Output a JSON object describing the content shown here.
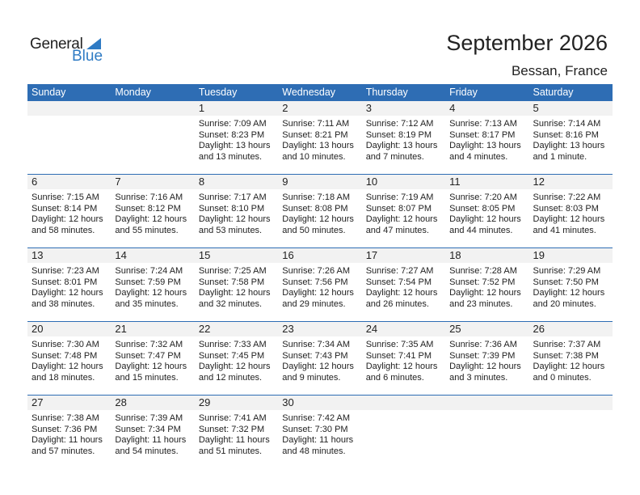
{
  "logo": {
    "general": "General",
    "blue": "Blue"
  },
  "header": {
    "title": "September 2026",
    "location": "Bessan, France"
  },
  "colors": {
    "accent": "#2e6db4",
    "day_bar": "#f2f2f2"
  },
  "weekdays": [
    "Sunday",
    "Monday",
    "Tuesday",
    "Wednesday",
    "Thursday",
    "Friday",
    "Saturday"
  ],
  "weeks": [
    [
      null,
      null,
      {
        "day": "1",
        "sunrise": "Sunrise: 7:09 AM",
        "sunset": "Sunset: 8:23 PM",
        "daylight": "Daylight: 13 hours",
        "minutes": "and 13 minutes."
      },
      {
        "day": "2",
        "sunrise": "Sunrise: 7:11 AM",
        "sunset": "Sunset: 8:21 PM",
        "daylight": "Daylight: 13 hours",
        "minutes": "and 10 minutes."
      },
      {
        "day": "3",
        "sunrise": "Sunrise: 7:12 AM",
        "sunset": "Sunset: 8:19 PM",
        "daylight": "Daylight: 13 hours",
        "minutes": "and 7 minutes."
      },
      {
        "day": "4",
        "sunrise": "Sunrise: 7:13 AM",
        "sunset": "Sunset: 8:17 PM",
        "daylight": "Daylight: 13 hours",
        "minutes": "and 4 minutes."
      },
      {
        "day": "5",
        "sunrise": "Sunrise: 7:14 AM",
        "sunset": "Sunset: 8:16 PM",
        "daylight": "Daylight: 13 hours",
        "minutes": "and 1 minute."
      }
    ],
    [
      {
        "day": "6",
        "sunrise": "Sunrise: 7:15 AM",
        "sunset": "Sunset: 8:14 PM",
        "daylight": "Daylight: 12 hours",
        "minutes": "and 58 minutes."
      },
      {
        "day": "7",
        "sunrise": "Sunrise: 7:16 AM",
        "sunset": "Sunset: 8:12 PM",
        "daylight": "Daylight: 12 hours",
        "minutes": "and 55 minutes."
      },
      {
        "day": "8",
        "sunrise": "Sunrise: 7:17 AM",
        "sunset": "Sunset: 8:10 PM",
        "daylight": "Daylight: 12 hours",
        "minutes": "and 53 minutes."
      },
      {
        "day": "9",
        "sunrise": "Sunrise: 7:18 AM",
        "sunset": "Sunset: 8:08 PM",
        "daylight": "Daylight: 12 hours",
        "minutes": "and 50 minutes."
      },
      {
        "day": "10",
        "sunrise": "Sunrise: 7:19 AM",
        "sunset": "Sunset: 8:07 PM",
        "daylight": "Daylight: 12 hours",
        "minutes": "and 47 minutes."
      },
      {
        "day": "11",
        "sunrise": "Sunrise: 7:20 AM",
        "sunset": "Sunset: 8:05 PM",
        "daylight": "Daylight: 12 hours",
        "minutes": "and 44 minutes."
      },
      {
        "day": "12",
        "sunrise": "Sunrise: 7:22 AM",
        "sunset": "Sunset: 8:03 PM",
        "daylight": "Daylight: 12 hours",
        "minutes": "and 41 minutes."
      }
    ],
    [
      {
        "day": "13",
        "sunrise": "Sunrise: 7:23 AM",
        "sunset": "Sunset: 8:01 PM",
        "daylight": "Daylight: 12 hours",
        "minutes": "and 38 minutes."
      },
      {
        "day": "14",
        "sunrise": "Sunrise: 7:24 AM",
        "sunset": "Sunset: 7:59 PM",
        "daylight": "Daylight: 12 hours",
        "minutes": "and 35 minutes."
      },
      {
        "day": "15",
        "sunrise": "Sunrise: 7:25 AM",
        "sunset": "Sunset: 7:58 PM",
        "daylight": "Daylight: 12 hours",
        "minutes": "and 32 minutes."
      },
      {
        "day": "16",
        "sunrise": "Sunrise: 7:26 AM",
        "sunset": "Sunset: 7:56 PM",
        "daylight": "Daylight: 12 hours",
        "minutes": "and 29 minutes."
      },
      {
        "day": "17",
        "sunrise": "Sunrise: 7:27 AM",
        "sunset": "Sunset: 7:54 PM",
        "daylight": "Daylight: 12 hours",
        "minutes": "and 26 minutes."
      },
      {
        "day": "18",
        "sunrise": "Sunrise: 7:28 AM",
        "sunset": "Sunset: 7:52 PM",
        "daylight": "Daylight: 12 hours",
        "minutes": "and 23 minutes."
      },
      {
        "day": "19",
        "sunrise": "Sunrise: 7:29 AM",
        "sunset": "Sunset: 7:50 PM",
        "daylight": "Daylight: 12 hours",
        "minutes": "and 20 minutes."
      }
    ],
    [
      {
        "day": "20",
        "sunrise": "Sunrise: 7:30 AM",
        "sunset": "Sunset: 7:48 PM",
        "daylight": "Daylight: 12 hours",
        "minutes": "and 18 minutes."
      },
      {
        "day": "21",
        "sunrise": "Sunrise: 7:32 AM",
        "sunset": "Sunset: 7:47 PM",
        "daylight": "Daylight: 12 hours",
        "minutes": "and 15 minutes."
      },
      {
        "day": "22",
        "sunrise": "Sunrise: 7:33 AM",
        "sunset": "Sunset: 7:45 PM",
        "daylight": "Daylight: 12 hours",
        "minutes": "and 12 minutes."
      },
      {
        "day": "23",
        "sunrise": "Sunrise: 7:34 AM",
        "sunset": "Sunset: 7:43 PM",
        "daylight": "Daylight: 12 hours",
        "minutes": "and 9 minutes."
      },
      {
        "day": "24",
        "sunrise": "Sunrise: 7:35 AM",
        "sunset": "Sunset: 7:41 PM",
        "daylight": "Daylight: 12 hours",
        "minutes": "and 6 minutes."
      },
      {
        "day": "25",
        "sunrise": "Sunrise: 7:36 AM",
        "sunset": "Sunset: 7:39 PM",
        "daylight": "Daylight: 12 hours",
        "minutes": "and 3 minutes."
      },
      {
        "day": "26",
        "sunrise": "Sunrise: 7:37 AM",
        "sunset": "Sunset: 7:38 PM",
        "daylight": "Daylight: 12 hours",
        "minutes": "and 0 minutes."
      }
    ],
    [
      {
        "day": "27",
        "sunrise": "Sunrise: 7:38 AM",
        "sunset": "Sunset: 7:36 PM",
        "daylight": "Daylight: 11 hours",
        "minutes": "and 57 minutes."
      },
      {
        "day": "28",
        "sunrise": "Sunrise: 7:39 AM",
        "sunset": "Sunset: 7:34 PM",
        "daylight": "Daylight: 11 hours",
        "minutes": "and 54 minutes."
      },
      {
        "day": "29",
        "sunrise": "Sunrise: 7:41 AM",
        "sunset": "Sunset: 7:32 PM",
        "daylight": "Daylight: 11 hours",
        "minutes": "and 51 minutes."
      },
      {
        "day": "30",
        "sunrise": "Sunrise: 7:42 AM",
        "sunset": "Sunset: 7:30 PM",
        "daylight": "Daylight: 11 hours",
        "minutes": "and 48 minutes."
      },
      null,
      null,
      null
    ]
  ]
}
